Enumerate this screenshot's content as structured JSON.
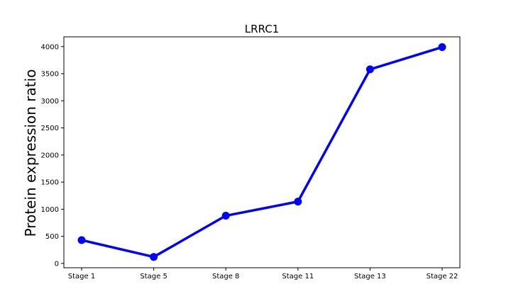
{
  "chart_data": {
    "type": "line",
    "title": "LRRC1",
    "xlabel": "",
    "ylabel": "Protein expression ratio",
    "categories": [
      "Stage 1",
      "Stage 5",
      "Stage 8",
      "Stage 11",
      "Stage 13",
      "Stage 22"
    ],
    "values": [
      430,
      120,
      880,
      1140,
      3580,
      3990
    ],
    "ylim": [
      -80,
      4180
    ],
    "yticks": [
      0,
      500,
      1000,
      1500,
      2000,
      2500,
      3000,
      3500,
      4000
    ],
    "grid": false,
    "legend": "none",
    "line_color": "#0000ff",
    "marker": "circle"
  }
}
